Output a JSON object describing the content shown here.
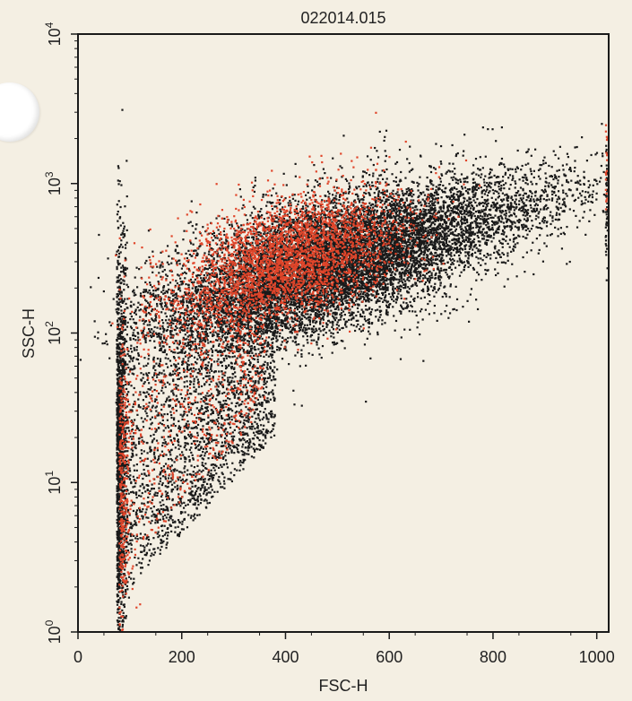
{
  "page": {
    "background": "#f4efe3"
  },
  "chart_data": {
    "type": "scatter",
    "title": "022014.015",
    "xlabel": "FSC-H",
    "ylabel": "SSC-H",
    "xlim": [
      0,
      1023
    ],
    "ylim": [
      1,
      10000
    ],
    "y_scale": "log",
    "x_ticks": [
      0,
      200,
      400,
      600,
      800,
      1000
    ],
    "x_tick_labels": [
      "0",
      "200",
      "400",
      "600",
      "800",
      "1000"
    ],
    "y_ticks": [
      {
        "value": 1,
        "base": "10",
        "exp": "0"
      },
      {
        "value": 10,
        "base": "10",
        "exp": "1"
      },
      {
        "value": 100,
        "base": "10",
        "exp": "2"
      },
      {
        "value": 1000,
        "base": "10",
        "exp": "3"
      },
      {
        "value": 10000,
        "base": "10",
        "exp": "4"
      }
    ],
    "grid": false,
    "series_colors": {
      "black": "#1a1a1a",
      "red": "#e0452a"
    },
    "populations": [
      {
        "color": "black",
        "weight": 9000,
        "type": "main",
        "x_center": 470,
        "x_sd": 140,
        "logy_center": 2.45,
        "logy_sd": 0.22
      },
      {
        "color": "red",
        "weight": 3000,
        "type": "main",
        "x_center": 410,
        "x_sd": 110,
        "logy_center": 2.5,
        "logy_sd": 0.2
      },
      {
        "color": "black",
        "weight": 1800,
        "type": "high",
        "x_center": 740,
        "x_sd": 140,
        "logy_center": 2.75,
        "logy_sd": 0.15
      },
      {
        "color": "black",
        "weight": 1500,
        "type": "edge",
        "x_center": 75,
        "x_sd": 10,
        "logy_center": 1.2,
        "logy_sd": 0.7
      },
      {
        "color": "red",
        "weight": 350,
        "type": "edge",
        "x_center": 80,
        "x_sd": 12,
        "logy_center": 1.0,
        "logy_sd": 0.55
      },
      {
        "color": "black",
        "weight": 2600,
        "type": "tail",
        "x_min": 100,
        "x_max": 380,
        "logy_min": 0.3,
        "logy_max": 2.3
      },
      {
        "color": "red",
        "weight": 600,
        "type": "tail",
        "x_min": 110,
        "x_max": 360,
        "logy_min": 0.5,
        "logy_max": 2.3
      },
      {
        "color": "black",
        "weight": 45,
        "type": "right-edge",
        "x_center": 1021,
        "logy_center": 2.85,
        "logy_sd": 0.2
      },
      {
        "color": "red",
        "weight": 20,
        "type": "right-edge",
        "x_center": 1021,
        "logy_center": 3.1,
        "logy_sd": 0.2
      }
    ]
  }
}
